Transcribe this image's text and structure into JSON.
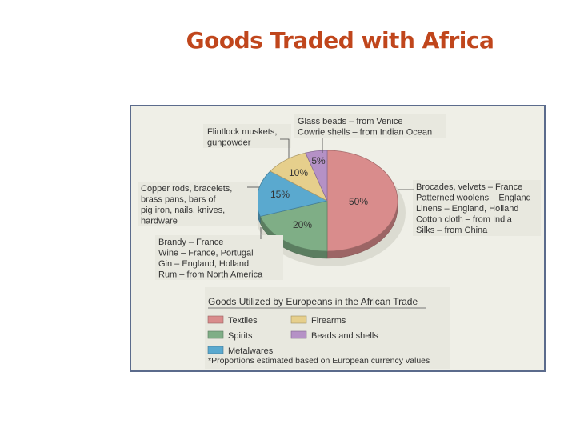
{
  "slide": {
    "title": "Goods Traded with Africa"
  },
  "chart_data": {
    "type": "pie",
    "title": "Goods Utilized by Europeans in the African Trade",
    "note": "*Proportions estimated based on European currency values",
    "colors": {
      "textiles": "#d98c8c",
      "spirits": "#7fae86",
      "metalwares": "#5aa9cf",
      "firearms": "#e6cf8c",
      "beads": "#b591c6"
    },
    "slices": [
      {
        "key": "textiles",
        "name": "Textiles",
        "value": 50,
        "label": "50%",
        "details": [
          "Brocades, velvets – France",
          "Patterned woolens – England",
          "Linens – England, Holland",
          "Cotton cloth – from India",
          "Silks – from China"
        ]
      },
      {
        "key": "spirits",
        "name": "Spirits",
        "value": 20,
        "label": "20%",
        "details": [
          "Brandy – France",
          "Wine – France, Portugal",
          "Gin – England, Holland",
          "Rum – from North America"
        ]
      },
      {
        "key": "metalwares",
        "name": "Metalwares",
        "value": 15,
        "label": "15%",
        "details": [
          "Copper rods, bracelets,",
          "brass pans, bars of",
          "pig iron, nails, knives,",
          "hardware"
        ]
      },
      {
        "key": "firearms",
        "name": "Firearms",
        "value": 10,
        "label": "10%",
        "details": [
          "Flintlock muskets,",
          "gunpowder"
        ]
      },
      {
        "key": "beads",
        "name": "Beads and shells",
        "value": 5,
        "label": "5%",
        "details": [
          "Glass beads – from Venice",
          "Cowrie shells – from Indian Ocean"
        ]
      }
    ],
    "legend": [
      {
        "key": "textiles",
        "label": "Textiles"
      },
      {
        "key": "firearms",
        "label": "Firearms"
      },
      {
        "key": "spirits",
        "label": "Spirits"
      },
      {
        "key": "beads",
        "label": "Beads and shells"
      },
      {
        "key": "metalwares",
        "label": "Metalwares"
      }
    ]
  }
}
